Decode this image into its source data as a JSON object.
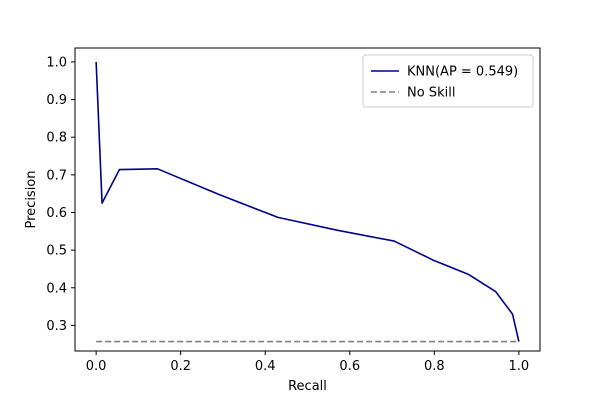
{
  "chart_data": {
    "type": "line",
    "xlabel": "Recall",
    "ylabel": "Precision",
    "xlim": [
      -0.05,
      1.05
    ],
    "ylim": [
      0.232,
      1.037
    ],
    "xticks": [
      "0.0",
      "0.2",
      "0.4",
      "0.6",
      "0.8",
      "1.0"
    ],
    "yticks": [
      "0.3",
      "0.4",
      "0.5",
      "0.6",
      "0.7",
      "0.8",
      "0.9",
      "1.0"
    ],
    "grid": false,
    "legend_position": "top-right",
    "series": [
      {
        "name": "KNN(AP = 0.549)",
        "color": "#00008b",
        "linestyle": "solid",
        "x": [
          0.0,
          0.014,
          0.055,
          0.145,
          0.29,
          0.43,
          0.57,
          0.705,
          0.8,
          0.88,
          0.945,
          0.985,
          1.0
        ],
        "y": [
          1.0,
          0.625,
          0.714,
          0.716,
          0.648,
          0.587,
          0.553,
          0.524,
          0.472,
          0.436,
          0.39,
          0.33,
          0.257
        ]
      },
      {
        "name": "No Skill",
        "color": "#808080",
        "linestyle": "dashed",
        "x": [
          0.0,
          1.0
        ],
        "y": [
          0.257,
          0.257
        ]
      }
    ]
  }
}
